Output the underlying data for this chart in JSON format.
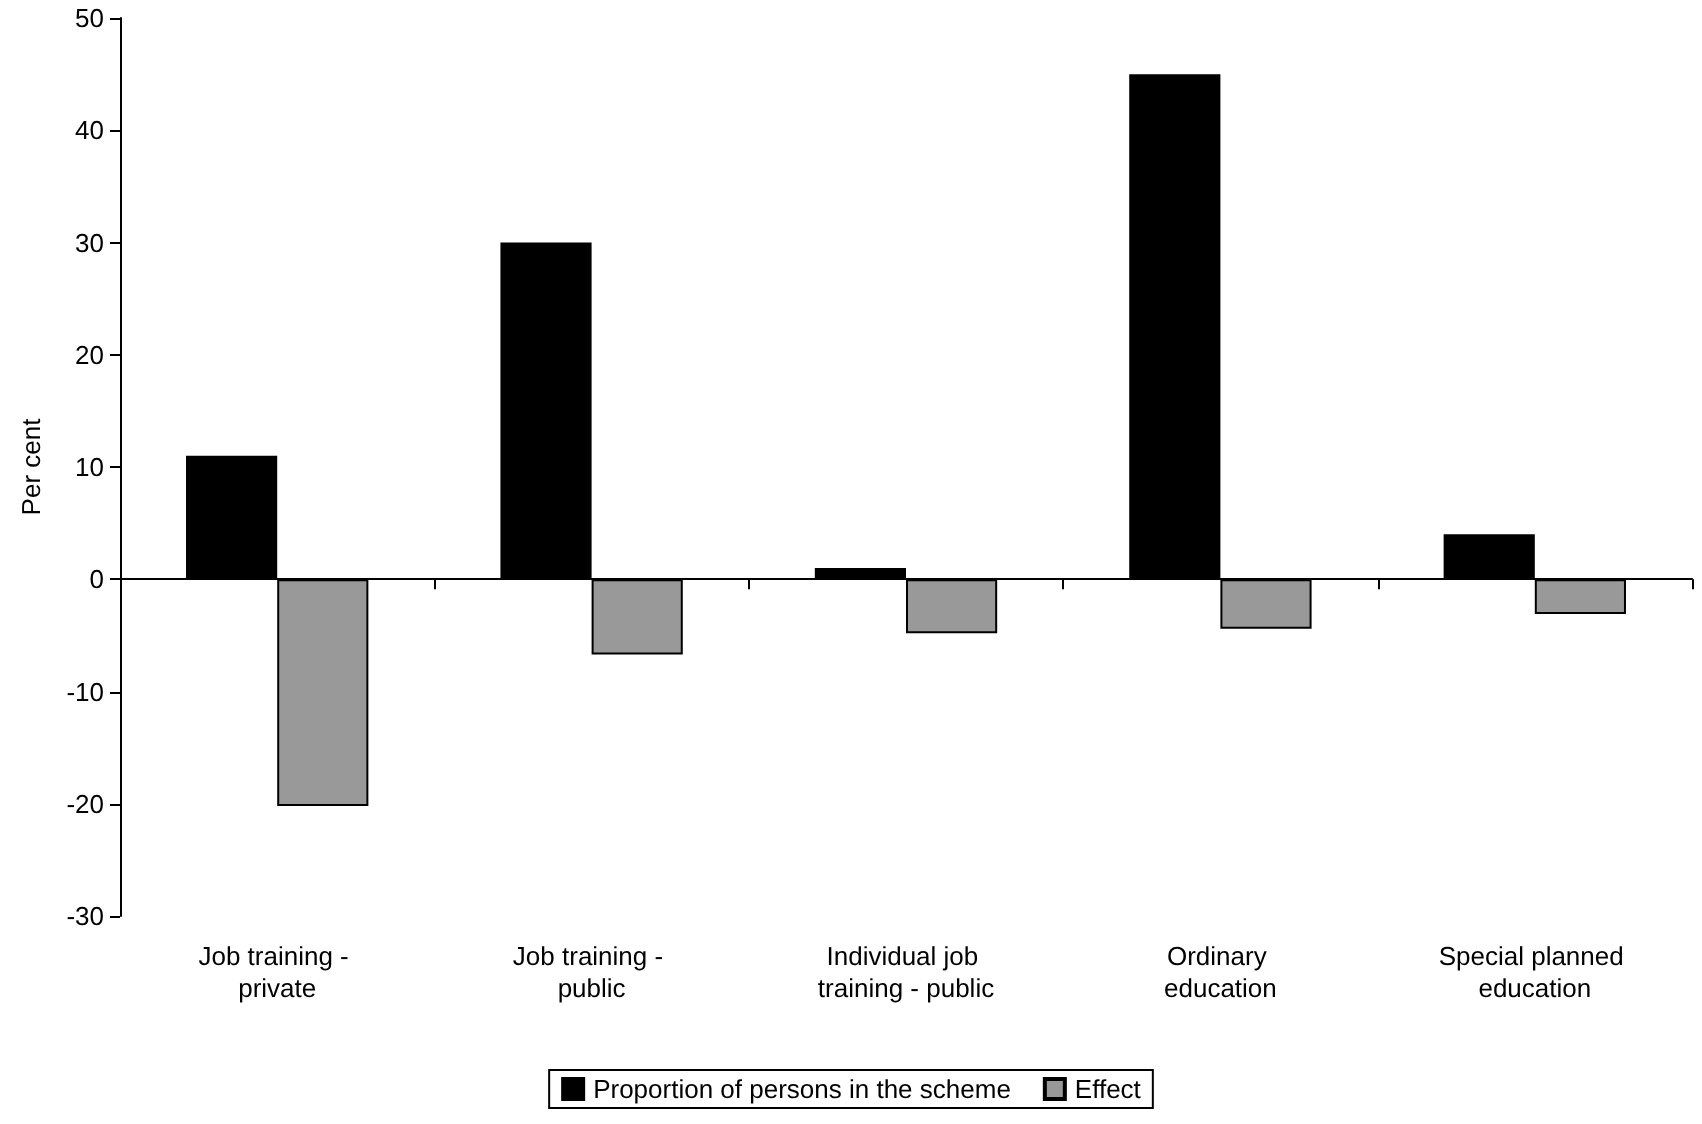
{
  "chart_data": {
    "type": "bar",
    "ylabel": "Per cent",
    "categories": [
      "Job training - private",
      "Job training - public",
      "Individual job training - public",
      "Ordinary education",
      "Special planned education"
    ],
    "series": [
      {
        "name": "Proportion of persons in the scheme",
        "color": "#000000",
        "values": [
          11,
          30,
          1,
          45,
          4
        ]
      },
      {
        "name": "Effect",
        "color": "#999999",
        "values": [
          -20.2,
          -6.7,
          -4.8,
          -4.4,
          -3.1
        ]
      }
    ],
    "ylim": [
      -30,
      50
    ],
    "yticks": [
      -30,
      -20,
      -10,
      0,
      10,
      20,
      30,
      40,
      50
    ],
    "legend": "bottom"
  }
}
